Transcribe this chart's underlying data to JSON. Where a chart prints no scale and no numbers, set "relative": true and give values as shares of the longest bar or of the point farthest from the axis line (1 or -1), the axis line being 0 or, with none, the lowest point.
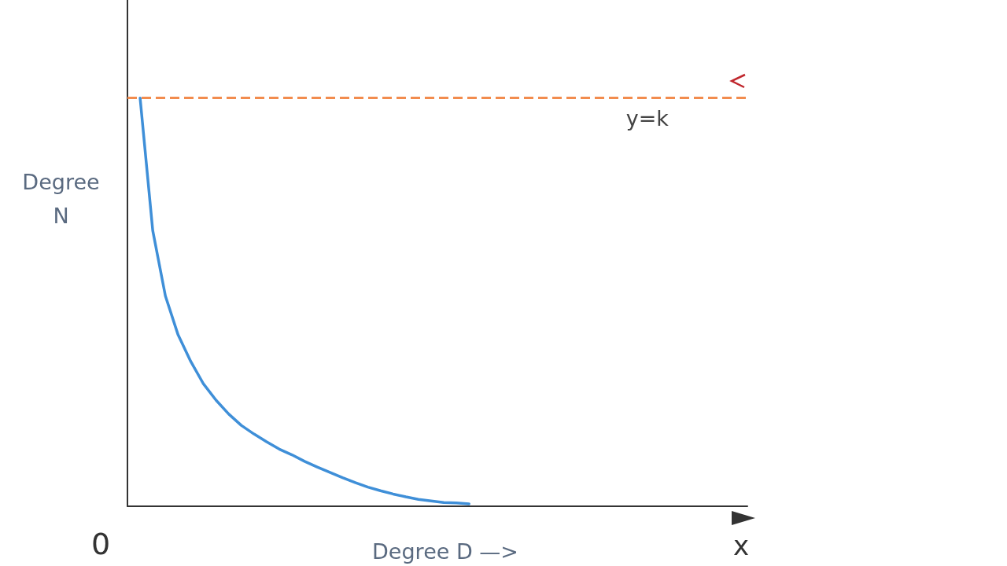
{
  "chart_data": {
    "type": "line",
    "relative": true,
    "xlabel": "Degree D —>",
    "ylabel": "Degree N",
    "annotations": [
      "x",
      "0"
    ],
    "categories": [
      null,
      null,
      null,
      null,
      null,
      null,
      null,
      null,
      null,
      null,
      null,
      null,
      null,
      null,
      null,
      null,
      null,
      null,
      null,
      null,
      null,
      null,
      null,
      null,
      null,
      null,
      null,
      null,
      null,
      null,
      null,
      null,
      null,
      null,
      null,
      null,
      null,
      null,
      null,
      null,
      null,
      null,
      null,
      null,
      null,
      null,
      null,
      null,
      null,
      null
    ],
    "series": [
      {
        "color": "#3f8fd8",
        "values": [
          null,
          1.0,
          0.675,
          0.515,
          0.42,
          0.355,
          0.3,
          0.26,
          0.226,
          0.198,
          0.177,
          0.158,
          0.14,
          0.126,
          0.11,
          0.096,
          0.083,
          0.07,
          0.058,
          0.047,
          0.038,
          0.03,
          0.023,
          0.017,
          0.013,
          0.009,
          0.008,
          0.006,
          null,
          null,
          null,
          null,
          null,
          null,
          null,
          null,
          null,
          null,
          null,
          null,
          null,
          null,
          null,
          null,
          null,
          null,
          null,
          null,
          null,
          null
        ]
      }
    ],
    "ref_lines": [
      {
        "axis": "y",
        "value": 1.0,
        "label": "y=k",
        "color": "#f28c4e",
        "line_style": "dashed"
      }
    ],
    "grid": false,
    "marker": "none",
    "line_style": "solid"
  }
}
